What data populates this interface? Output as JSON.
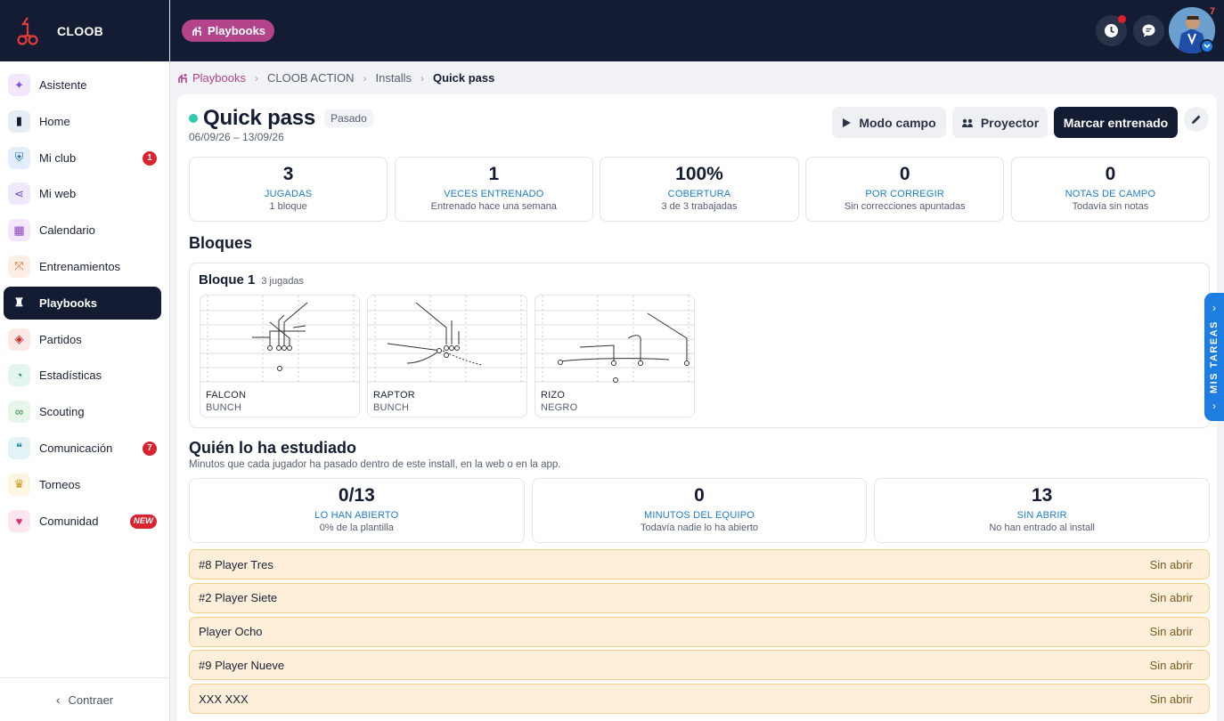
{
  "app": {
    "brand": "CLOOB"
  },
  "sidebar": {
    "items": [
      {
        "label": "Asistente",
        "icon": "sparkle-icon",
        "bg": "#f1e9fb",
        "color": "#8a4fd8"
      },
      {
        "label": "Home",
        "icon": "bookmark-icon",
        "bg": "#e8ecf5",
        "color": "#141c33"
      },
      {
        "label": "Mi club",
        "icon": "shield-icon",
        "bg": "#e3eefb",
        "color": "#2d6fb8",
        "badge": "1"
      },
      {
        "label": "Mi web",
        "icon": "share-icon",
        "bg": "#efe9fb",
        "color": "#6b49c6"
      },
      {
        "label": "Calendario",
        "icon": "calendar-icon",
        "bg": "#f3e8fb",
        "color": "#8a3fc6"
      },
      {
        "label": "Entrenamientos",
        "icon": "whistle-icon",
        "bg": "#fdeee4",
        "color": "#e0672b"
      },
      {
        "label": "Playbooks",
        "icon": "playbook-icon",
        "bg": "#141c33",
        "color": "#ffffff",
        "active": true
      },
      {
        "label": "Partidos",
        "icon": "football-icon",
        "bg": "#fde8e8",
        "color": "#c62828"
      },
      {
        "label": "Estadísticas",
        "icon": "pie-chart-icon",
        "bg": "#e3f5ee",
        "color": "#1b8a5a"
      },
      {
        "label": "Scouting",
        "icon": "binoculars-icon",
        "bg": "#e6f6ea",
        "color": "#2e8b3c"
      },
      {
        "label": "Comunicación",
        "icon": "chat-icon",
        "bg": "#e3f3f5",
        "color": "#1a8a96",
        "badge": "7"
      },
      {
        "label": "Torneos",
        "icon": "trophy-icon",
        "bg": "#fdf5e0",
        "color": "#c79a14"
      },
      {
        "label": "Comunidad",
        "icon": "heart-icon",
        "bg": "#fde6ef",
        "color": "#d6336c",
        "badge": "NEW"
      }
    ],
    "collapse_label": "Contraer"
  },
  "topbar": {
    "section_pill": "Playbooks",
    "avatar_count": "7"
  },
  "breadcrumb": [
    "Playbooks",
    "CLOOB ACTION",
    "Installs",
    "Quick pass"
  ],
  "header": {
    "title": "Quick pass",
    "status": "Pasado",
    "dates": "06/09/26 – 13/09/26",
    "btn_field": "Modo campo",
    "btn_projector": "Proyector",
    "btn_mark": "Marcar entrenado"
  },
  "stats": [
    {
      "value": "3",
      "label": "JUGADAS",
      "sub": "1 bloque"
    },
    {
      "value": "1",
      "label": "VECES ENTRENADO",
      "sub": "Entrenado hace una semana"
    },
    {
      "value": "100%",
      "label": "COBERTURA",
      "sub": "3 de 3 trabajadas"
    },
    {
      "value": "0",
      "label": "POR CORREGIR",
      "sub": "Sin correcciones apuntadas"
    },
    {
      "value": "0",
      "label": "NOTAS DE CAMPO",
      "sub": "Todavía sin notas"
    }
  ],
  "blocks_section": {
    "title": "Bloques",
    "block_title": "Bloque 1",
    "block_count": "3 jugadas",
    "plays": [
      {
        "name": "FALCON",
        "formation": "BUNCH"
      },
      {
        "name": "RAPTOR",
        "formation": "BUNCH"
      },
      {
        "name": "RIZO",
        "formation": "NEGRO"
      }
    ]
  },
  "study": {
    "title": "Quién lo ha estudiado",
    "subtitle": "Minutos que cada jugador ha pasado dentro de este install, en la web o en la app.",
    "stats": [
      {
        "value": "0/13",
        "label": "LO HAN ABIERTO",
        "sub": "0% de la plantilla"
      },
      {
        "value": "0",
        "label": "MINUTOS DEL EQUIPO",
        "sub": "Todavía nadie lo ha abierto"
      },
      {
        "value": "13",
        "label": "SIN ABRIR",
        "sub": "No han entrado al install"
      }
    ],
    "players": [
      {
        "name": "#8 Player Tres",
        "status": "Sin abrir"
      },
      {
        "name": "#2 Player Siete",
        "status": "Sin abrir"
      },
      {
        "name": "Player Ocho",
        "status": "Sin abrir"
      },
      {
        "name": "#9 Player Nueve",
        "status": "Sin abrir"
      },
      {
        "name": "XXX XXX",
        "status": "Sin abrir"
      }
    ]
  },
  "side_tab": {
    "label": "MIS TAREAS"
  }
}
